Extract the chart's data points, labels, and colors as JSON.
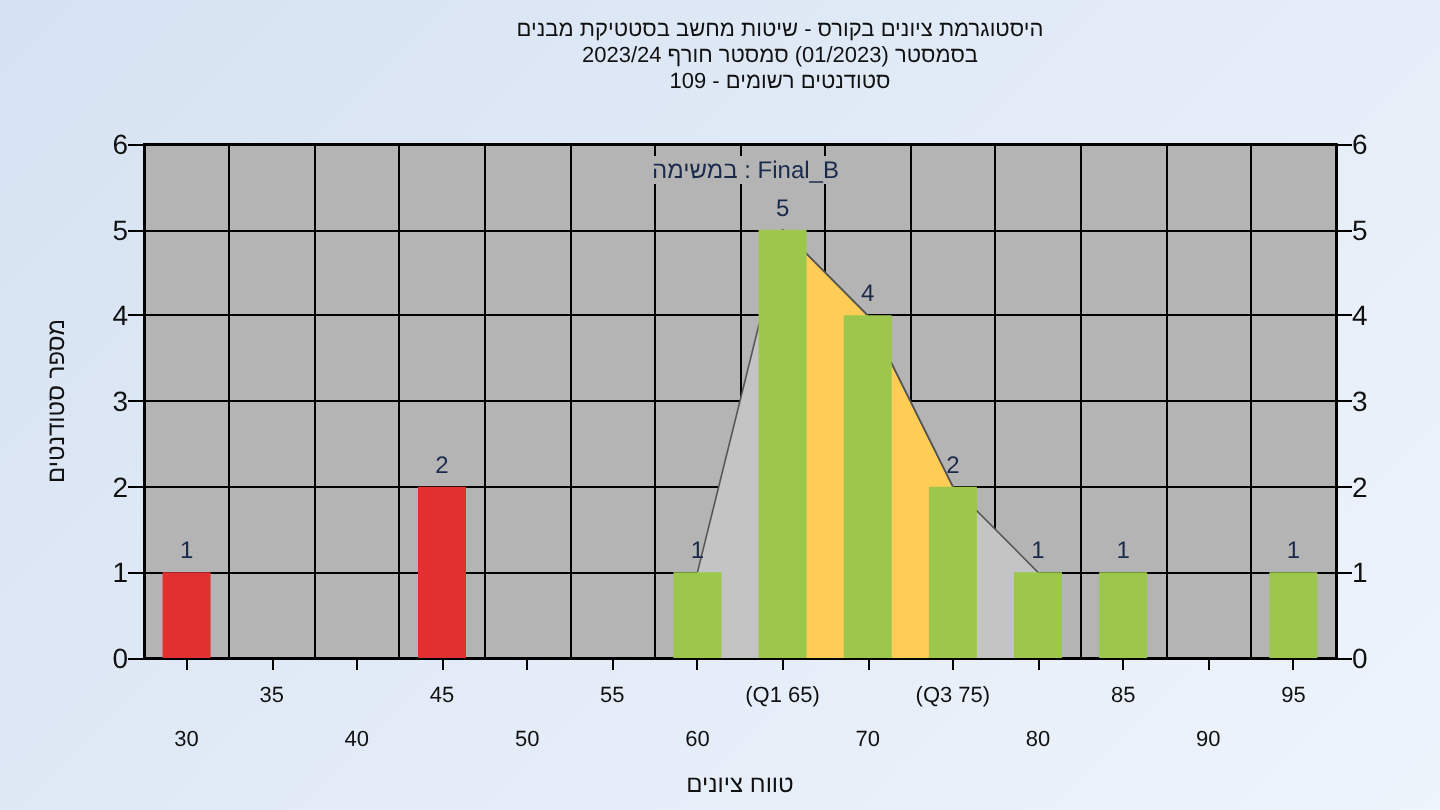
{
  "chart_data": {
    "type": "bar",
    "title": "היסטוגרמת ציונים בקורס - שיטות מחשב בסטטיקת מבנים",
    "subtitle": "בסמסטר  (01/2023)  סמסטר חורף 2023/24\nסטודנטים רשומים - 109",
    "xlabel": "טווח ציונים",
    "ylabel": "מספר סטודנטים",
    "annotations": [
      "במשימה : Final_B"
    ],
    "categories": [
      "30",
      "35",
      "40",
      "45",
      "50",
      "55",
      "60",
      "(Q1 65)",
      "70",
      "(Q3 75)",
      "80",
      "85",
      "90",
      "95"
    ],
    "series": [
      {
        "type": "area",
        "color": "#c4c4c4",
        "values": [
          null,
          null,
          null,
          null,
          null,
          null,
          1,
          5,
          4,
          2,
          1,
          null,
          null,
          null
        ]
      },
      {
        "type": "area",
        "color": "#ffcc55",
        "values": [
          null,
          null,
          null,
          null,
          null,
          null,
          null,
          5,
          4,
          2,
          null,
          null,
          null,
          null
        ]
      },
      {
        "colors": [
          "#e03030",
          "#e03030",
          "#e03030",
          "#e03030",
          "#9cc74c",
          "#9cc74c",
          "#9cc74c",
          "#9cc74c",
          "#9cc74c",
          "#9cc74c",
          "#9cc74c",
          "#9cc74c",
          "#9cc74c",
          "#9cc74c"
        ],
        "values": [
          1,
          0,
          0,
          2,
          0,
          0,
          1,
          5,
          4,
          2,
          1,
          1,
          0,
          1
        ],
        "value_labels": [
          "1",
          null,
          null,
          "2",
          null,
          null,
          "1",
          "5",
          "4",
          "2",
          "1",
          "1",
          null,
          "1"
        ]
      }
    ],
    "ylim": [
      0,
      6
    ],
    "yticks": [
      0,
      1,
      2,
      3,
      4,
      5,
      6
    ],
    "y2lim": [
      0,
      6
    ],
    "y2ticks": [
      0,
      1,
      2,
      3,
      4,
      5,
      6
    ],
    "grid": true
  }
}
